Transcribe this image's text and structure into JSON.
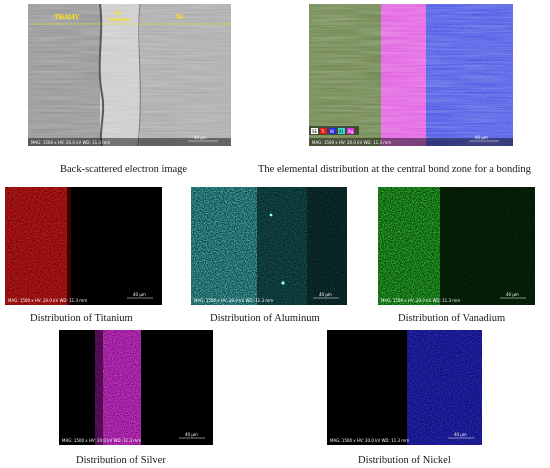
{
  "figure": {
    "panels": [
      {
        "id": "bse",
        "caption": "Back-scattered electron image",
        "zone_labels": [
          "Ti6Al4V",
          "Ag",
          "Interlayer",
          "Ni"
        ],
        "footer": "MAG: 1500 x HV: 20.0 kV WD: 11.3 mm",
        "scale": "40 μm"
      },
      {
        "id": "overlay",
        "caption": "The elemental distribution at the central bond zone for a bonding",
        "legend": [
          "SE",
          "Ti",
          "Ni",
          "Al",
          "Ag"
        ],
        "footer": "MAG: 1500 x HV: 20.0 kV WD: 11.3 mm",
        "scale": "40 μm"
      },
      {
        "id": "ti",
        "caption": "Distribution of Titanium",
        "footer": "MAG: 1500 x HV: 20.0 kV WD: 11.3 mm",
        "scale": "40 μm",
        "color": "#e01818"
      },
      {
        "id": "al",
        "caption": "Distribution of Aluminum",
        "footer": "MAG: 1500 x HV: 20.0 kV WD: 11.3 mm",
        "scale": "40 μm",
        "color": "#3fd6d6"
      },
      {
        "id": "v",
        "caption": "Distribution of Vanadium",
        "footer": "MAG: 1500 x HV: 20.0 kV WD: 11.3 mm",
        "scale": "40 μm",
        "color": "#22c322"
      },
      {
        "id": "ag",
        "caption": "Distribution of Silver",
        "footer": "MAG: 1500 x HV: 20.0 kV WD: 11.3 mm",
        "scale": "40 μm",
        "color": "#e030e0"
      },
      {
        "id": "ni",
        "caption": "Distribution of Nickel",
        "footer": "MAG: 1500 x HV: 20.0 kV WD: 11.3 mm",
        "scale": "40 μm",
        "color": "#2a2ae0"
      }
    ]
  }
}
